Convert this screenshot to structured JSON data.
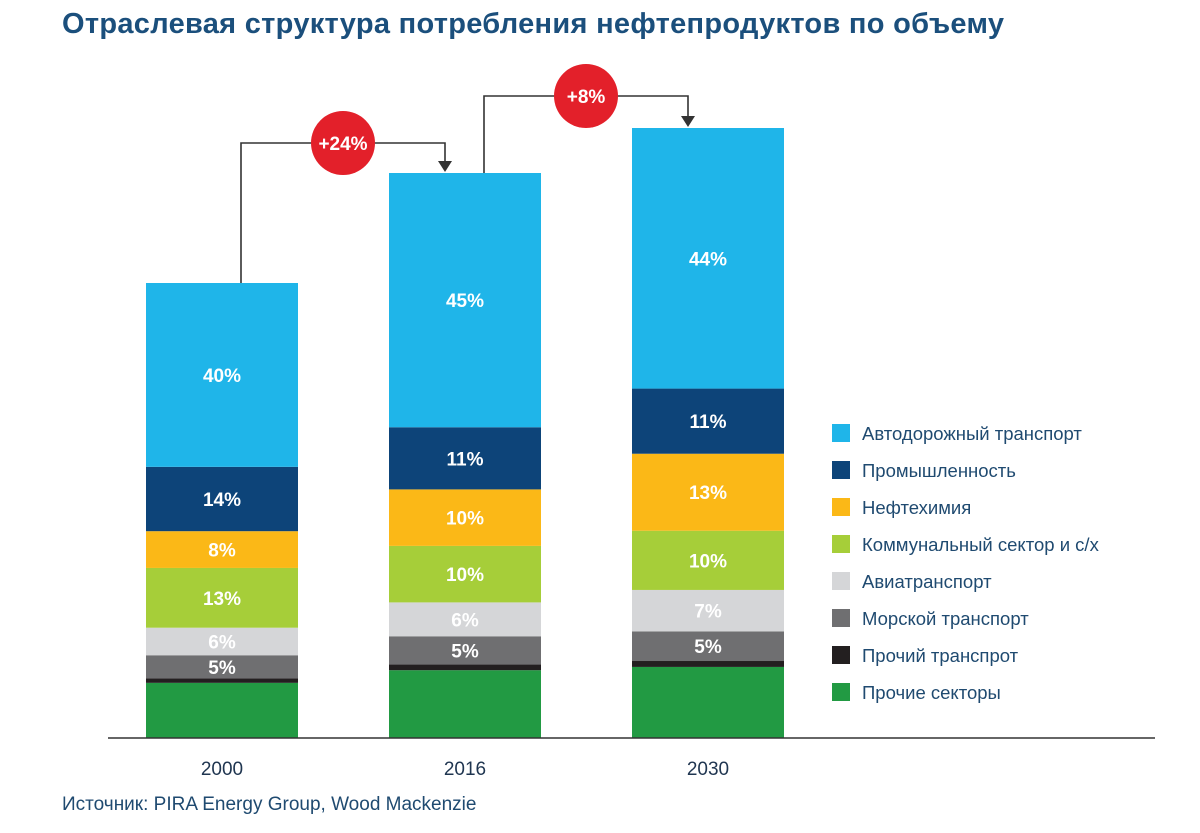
{
  "title": "Отраслевая структура потребления нефтепродуктов по объему",
  "source": "Источник: PIRA Energy Group, Wood Mackenzie",
  "chart_data": {
    "type": "bar",
    "stacked": true,
    "categories": [
      "2000",
      "2016",
      "2030"
    ],
    "totals_relative": [
      100,
      124,
      134
    ],
    "changes": [
      {
        "from": "2000",
        "to": "2016",
        "label": "+24%"
      },
      {
        "from": "2016",
        "to": "2030",
        "label": "+8%"
      }
    ],
    "series": [
      {
        "name": "Прочие секторы",
        "color": "#229a43",
        "values": [
          12,
          12,
          12
        ],
        "labels": [
          "",
          "",
          ""
        ]
      },
      {
        "name": "Прочий транспрот",
        "color": "#231f20",
        "values": [
          1,
          1,
          1
        ],
        "labels": [
          "",
          "",
          ""
        ]
      },
      {
        "name": "Морской транспорт",
        "color": "#6f6f71",
        "values": [
          5,
          5,
          5
        ],
        "labels": [
          "5%",
          "5%",
          "5%"
        ]
      },
      {
        "name": "Авиатранспорт",
        "color": "#d5d6d8",
        "values": [
          6,
          6,
          7
        ],
        "labels": [
          "6%",
          "6%",
          "7%"
        ]
      },
      {
        "name": "Коммунальный сектор и с/х",
        "color": "#a6ce39",
        "values": [
          13,
          10,
          10
        ],
        "labels": [
          "13%",
          "10%",
          "10%"
        ]
      },
      {
        "name": "Нефтехимия",
        "color": "#fbb817",
        "values": [
          8,
          10,
          13
        ],
        "labels": [
          "8%",
          "10%",
          "13%"
        ]
      },
      {
        "name": "Промышленность",
        "color": "#0d4479",
        "values": [
          14,
          11,
          11
        ],
        "labels": [
          "14%",
          "11%",
          "11%"
        ]
      },
      {
        "name": "Автодорожный транспорт",
        "color": "#1fb5e9",
        "values": [
          40,
          45,
          44
        ],
        "labels": [
          "40%",
          "45%",
          "44%"
        ]
      }
    ],
    "legend": {
      "position": "right",
      "items": [
        {
          "name": "Автодорожный транспорт",
          "color": "#1fb5e9"
        },
        {
          "name": "Промышленность",
          "color": "#0d4479"
        },
        {
          "name": "Нефтехимия",
          "color": "#fbb817"
        },
        {
          "name": "Коммунальный сектор и с/х",
          "color": "#a6ce39"
        },
        {
          "name": "Авиатранспорт",
          "color": "#d5d6d8"
        },
        {
          "name": "Морской транспорт",
          "color": "#6f6f71"
        },
        {
          "name": "Прочий транспрот",
          "color": "#231f20"
        },
        {
          "name": "Прочие секторы",
          "color": "#229a43"
        }
      ]
    },
    "badge_color": "#e3202a",
    "grid": false
  }
}
